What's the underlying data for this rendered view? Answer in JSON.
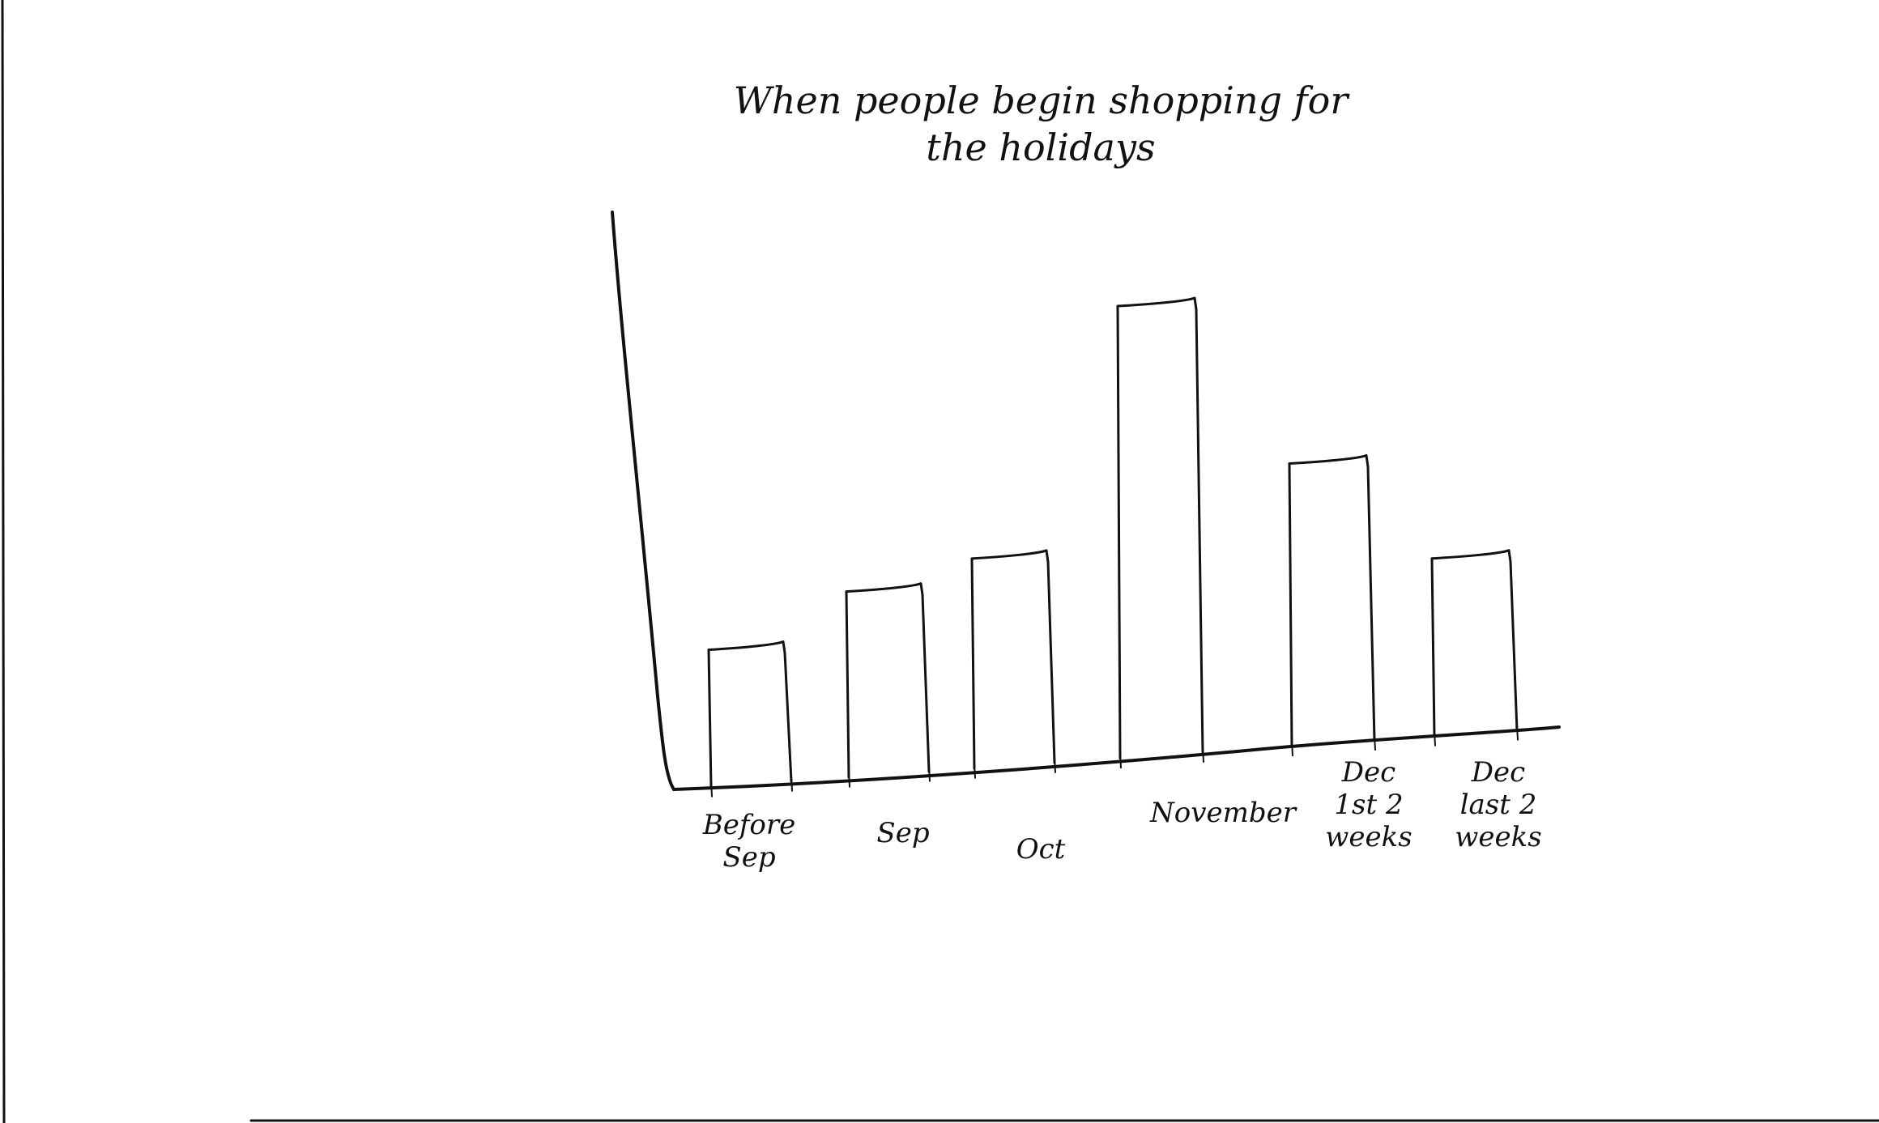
{
  "chart_data": {
    "type": "bar",
    "title": "When people begin shopping for the holidays",
    "categories": [
      "Before Sep",
      "Sep",
      "Oct",
      "November",
      "Dec 1st 2 weeks",
      "Dec last 2 weeks"
    ],
    "values": [
      17,
      23,
      26,
      56,
      35,
      22
    ],
    "ylim": [
      0,
      70
    ],
    "xlabel": "",
    "ylabel": "",
    "grid": false,
    "legend": "none"
  }
}
